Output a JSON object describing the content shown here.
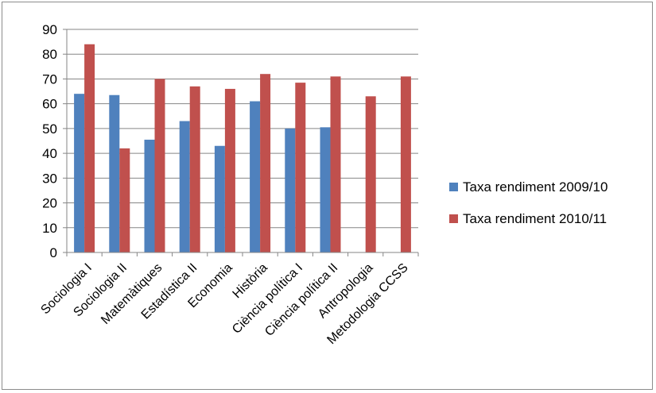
{
  "chart_data": {
    "type": "bar",
    "categories": [
      "Sociologia I",
      "Sociologia II",
      "Matemàtiques",
      "Estadística II",
      "Economia",
      "Història",
      "Ciència política I",
      "Ciència política II",
      "Antropologia",
      "Metodologia CCSS"
    ],
    "series": [
      {
        "name": "Taxa rendiment 2009/10",
        "color": "#4f81bd",
        "values": [
          64,
          63.5,
          45.5,
          53,
          43,
          61,
          50,
          50.5,
          null,
          null
        ]
      },
      {
        "name": "Taxa rendiment 2010/11",
        "color": "#c0504d",
        "values": [
          84,
          42,
          70,
          67,
          66,
          72,
          68.5,
          71,
          63,
          71
        ]
      }
    ],
    "ylim": [
      0,
      90
    ],
    "yticks": [
      "0",
      "10",
      "20",
      "30",
      "40",
      "50",
      "60",
      "70",
      "80",
      "90"
    ],
    "grid": true,
    "legend_position": "right"
  }
}
